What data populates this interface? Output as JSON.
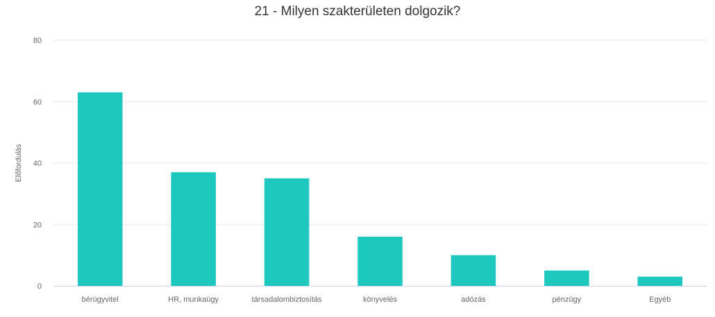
{
  "chart_data": {
    "type": "bar",
    "title": "21 - Milyen szakterületen dolgozik?",
    "xlabel": "",
    "ylabel": "Előfordulás",
    "categories": [
      "bérügyvitel",
      "HR, munkaügy",
      "társadalombiztosítás",
      "könyvelés",
      "adózás",
      "pénzügy",
      "Egyéb"
    ],
    "values": [
      63,
      37,
      35,
      16,
      10,
      5,
      3
    ],
    "ylim": [
      0,
      80
    ],
    "yticks": [
      0,
      20,
      40,
      60,
      80
    ],
    "grid": true,
    "legend": "none",
    "colors": {
      "bar": "#1ec8be",
      "grid": "#e6e6e6",
      "axis": "#ccd6eb"
    }
  }
}
